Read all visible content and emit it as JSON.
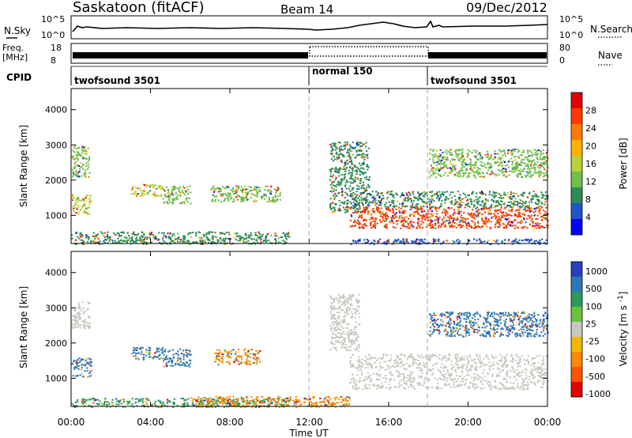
{
  "header": {
    "station_title": "Saskatoon (fitACF)",
    "beam_title": "Beam 14",
    "date_title": "09/Dec/2012"
  },
  "top_panels": {
    "nsky_label": "N.Sky",
    "nsky_ticks": [
      "10^5",
      "10^0"
    ],
    "nsearch_label": "N.Search",
    "nsearch_ticks": [
      "10^5",
      "10^0"
    ],
    "freq_label_1": "Freq.",
    "freq_label_2": "[MHz]",
    "freq_ticks": [
      "18",
      "8"
    ],
    "nave_label": "Nave",
    "nave_ticks": [
      "80",
      "0"
    ],
    "cpid_label": "CPID",
    "cpid_segments": [
      {
        "label": "twofsound 3501",
        "start": 0,
        "end": 12
      },
      {
        "label": "normal 150",
        "start": 12,
        "end": 18
      },
      {
        "label": "twofsound 3501",
        "start": 18,
        "end": 24
      }
    ]
  },
  "colors": {
    "power_scale": [
      "#0000ff",
      "#1e56c8",
      "#2e8b57",
      "#6fbf4a",
      "#b7d23a",
      "#ffb000",
      "#ff7a00",
      "#ff3a00",
      "#e00000"
    ],
    "velocity_scale": [
      "#2a3fbf",
      "#2f78b8",
      "#2f9a5a",
      "#69c43b",
      "#c8c8c0",
      "#f2b800",
      "#ff8a00",
      "#ff5400",
      "#e00000"
    ],
    "ground_scatter": "#c8c8c0"
  },
  "chart_data": [
    {
      "type": "heatmap",
      "title": "Power",
      "xlabel": "Time UT",
      "ylabel": "Slant Range [km]",
      "xlim": [
        0,
        24
      ],
      "ylim": [
        200,
        4600
      ],
      "x_tick_labels": [
        "00:00",
        "04:00",
        "08:00",
        "12:00",
        "16:00",
        "20:00",
        "00:00"
      ],
      "y_tick_labels": [
        "1000",
        "2000",
        "3000",
        "4000"
      ],
      "colorbar_label": "Power [dB]",
      "colorbar_ticks": [
        "28",
        "24",
        "20",
        "16",
        "12",
        "8",
        "4"
      ],
      "colorbar_range": [
        0,
        30
      ],
      "regions": [
        {
          "t0": 0.0,
          "t1": 1.0,
          "r0": 1050,
          "r1": 1600,
          "level": 14
        },
        {
          "t0": 0.0,
          "t1": 0.9,
          "r0": 2100,
          "r1": 3000,
          "level": 10
        },
        {
          "t0": 3.0,
          "t1": 4.6,
          "r0": 1550,
          "r1": 1900,
          "level": 14
        },
        {
          "t0": 4.6,
          "t1": 6.0,
          "r0": 1350,
          "r1": 1850,
          "level": 12
        },
        {
          "t0": 7.0,
          "t1": 10.5,
          "r0": 1400,
          "r1": 1850,
          "level": 10
        },
        {
          "t0": 0.0,
          "t1": 11.0,
          "r0": 200,
          "r1": 550,
          "level": 6
        },
        {
          "t0": 13.0,
          "t1": 15.0,
          "r0": 1100,
          "r1": 3100,
          "level": 8
        },
        {
          "t0": 14.0,
          "t1": 24.0,
          "r0": 650,
          "r1": 1250,
          "level": 26
        },
        {
          "t0": 15.0,
          "t1": 24.0,
          "r0": 1250,
          "r1": 1700,
          "level": 8
        },
        {
          "t0": 18.0,
          "t1": 24.0,
          "r0": 2100,
          "r1": 2900,
          "level": 13
        },
        {
          "t0": 14.0,
          "t1": 24.0,
          "r0": 200,
          "r1": 350,
          "level": 4
        }
      ]
    },
    {
      "type": "heatmap",
      "title": "Velocity",
      "xlabel": "Time UT",
      "ylabel": "Slant Range [km]",
      "xlim": [
        0,
        24
      ],
      "ylim": [
        200,
        4600
      ],
      "x_tick_labels": [
        "00:00",
        "04:00",
        "08:00",
        "12:00",
        "16:00",
        "20:00",
        "00:00"
      ],
      "y_tick_labels": [
        "1000",
        "2000",
        "3000",
        "4000"
      ],
      "colorbar_label": "Velocity [m s^-1]",
      "colorbar_ticks": [
        "1000",
        "500",
        "100",
        "25",
        "-25",
        "-100",
        "-500",
        "-1000"
      ],
      "colorbar_range": [
        -1000,
        1000
      ],
      "regions": [
        {
          "t0": 0.0,
          "t1": 0.9,
          "r0": 2400,
          "r1": 3200,
          "level": 0,
          "ground": true
        },
        {
          "t0": 0.0,
          "t1": 1.0,
          "r0": 1050,
          "r1": 1600,
          "level": 150
        },
        {
          "t0": 3.0,
          "t1": 4.6,
          "r0": 1550,
          "r1": 1900,
          "level": 200
        },
        {
          "t0": 4.6,
          "t1": 6.0,
          "r0": 1350,
          "r1": 1850,
          "level": 150
        },
        {
          "t0": 7.2,
          "t1": 9.5,
          "r0": 1400,
          "r1": 1850,
          "level": -300
        },
        {
          "t0": 0.0,
          "t1": 11.0,
          "r0": 200,
          "r1": 450,
          "level": 60
        },
        {
          "t0": 6.0,
          "t1": 14.0,
          "r0": 200,
          "r1": 500,
          "level": -150
        },
        {
          "t0": 13.0,
          "t1": 14.5,
          "r0": 1800,
          "r1": 3400,
          "level": 0,
          "ground": true
        },
        {
          "t0": 14.0,
          "t1": 24.0,
          "r0": 700,
          "r1": 1700,
          "level": 0,
          "ground": true
        },
        {
          "t0": 18.0,
          "t1": 24.0,
          "r0": 2200,
          "r1": 2900,
          "level": 300
        }
      ]
    }
  ]
}
